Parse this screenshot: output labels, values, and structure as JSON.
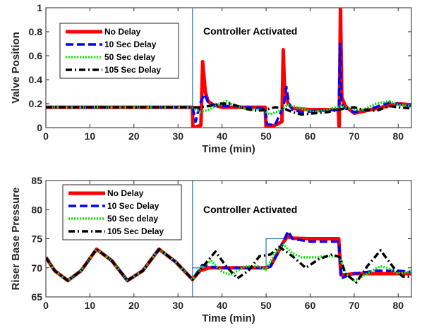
{
  "chart_data": [
    {
      "type": "line",
      "xlabel": "Time (min)",
      "ylabel": "Valve Position",
      "xlim": [
        0,
        83
      ],
      "ylim": [
        0,
        1
      ],
      "xticks": [
        0,
        10,
        20,
        30,
        40,
        50,
        60,
        70,
        80
      ],
      "yticks": [
        0,
        0.2,
        0.4,
        0.6,
        0.8,
        1
      ],
      "ytick_labels": [
        "0",
        "0.2",
        "0.4",
        "0.6",
        "0.8",
        "1"
      ],
      "annotation": "Controller Activated",
      "vline_x": 33.3,
      "legend_position": "top-left",
      "series": [
        {
          "name": "No Delay",
          "color": "#ff0000",
          "style": "solid",
          "x": [
            0,
            33.3,
            33.4,
            33.6,
            35.2,
            35.6,
            36.2,
            36.8,
            38,
            40,
            43,
            47,
            49.8,
            50,
            50.2,
            52,
            53.6,
            53.9,
            54.2,
            55,
            56,
            60,
            64,
            66.4,
            66.6,
            66.9,
            67.2,
            68,
            70,
            75,
            80,
            83
          ],
          "y": [
            0.17,
            0.17,
            0,
            0,
            0.02,
            0.55,
            0.3,
            0.22,
            0.19,
            0.17,
            0.17,
            0.17,
            0.17,
            0,
            0,
            0.02,
            0.05,
            0.65,
            0.3,
            0.2,
            0.16,
            0.15,
            0.15,
            0.15,
            0,
            1.0,
            0.25,
            0.18,
            0.12,
            0.16,
            0.2,
            0.19
          ]
        },
        {
          "name": "10 Sec Delay",
          "color": "#0000ff",
          "style": "dashed",
          "x": [
            0,
            33.3,
            34,
            35,
            36,
            37,
            39,
            42,
            46,
            49.8,
            50.2,
            52,
            54,
            54.6,
            55.2,
            56,
            58,
            62,
            66.5,
            66.8,
            67.1,
            68,
            70,
            74,
            78,
            83
          ],
          "y": [
            0.17,
            0.17,
            0.05,
            0.2,
            0.28,
            0.2,
            0.18,
            0.18,
            0.17,
            0.16,
            0.03,
            0.02,
            0.18,
            0.34,
            0.2,
            0.15,
            0.13,
            0.14,
            0.15,
            0.7,
            0.2,
            0.16,
            0.13,
            0.16,
            0.21,
            0.18
          ]
        },
        {
          "name": "50 Sec delay",
          "color": "#00ee00",
          "style": "dotted",
          "x": [
            0,
            33.3,
            35,
            37,
            39,
            41,
            43,
            46,
            49,
            51,
            53,
            55,
            58,
            61,
            64,
            67,
            69,
            72,
            75,
            78,
            80,
            83
          ],
          "y": [
            0.17,
            0.17,
            0.13,
            0.15,
            0.19,
            0.22,
            0.18,
            0.15,
            0.15,
            0.11,
            0.14,
            0.19,
            0.16,
            0.13,
            0.15,
            0.18,
            0.16,
            0.15,
            0.2,
            0.22,
            0.19,
            0.18
          ]
        },
        {
          "name": "105 Sec Delay",
          "color": "#000000",
          "style": "dashdot",
          "x": [
            0,
            33.3,
            35,
            37,
            39.5,
            42,
            45,
            48,
            50,
            52,
            54,
            56,
            58,
            61,
            64,
            66.5,
            68,
            70,
            72,
            75,
            78,
            80,
            83
          ],
          "y": [
            0.17,
            0.17,
            0.17,
            0.18,
            0.2,
            0.2,
            0.16,
            0.14,
            0.15,
            0.17,
            0.16,
            0.13,
            0.11,
            0.12,
            0.13,
            0.15,
            0.16,
            0.17,
            0.15,
            0.14,
            0.18,
            0.17,
            0.16
          ]
        }
      ]
    },
    {
      "type": "line",
      "xlabel": "Time (min)",
      "ylabel": "Riser Base Pressure",
      "xlim": [
        0,
        83
      ],
      "ylim": [
        65,
        85
      ],
      "xticks": [
        0,
        10,
        20,
        30,
        40,
        50,
        60,
        70,
        80
      ],
      "yticks": [
        65,
        70,
        75,
        80,
        85
      ],
      "ytick_labels": [
        "65",
        "70",
        "75",
        "80",
        "85"
      ],
      "annotation": "Controller Activated",
      "vline_x": 33.3,
      "legend_position": "top-left",
      "setpoint": {
        "color": "#1f77b4",
        "x": [
          33.3,
          50,
          50,
          66.7,
          66.7,
          83
        ],
        "y": [
          70,
          70,
          75,
          75,
          69,
          69
        ]
      },
      "series": [
        {
          "name": "No Delay",
          "color": "#ff0000",
          "style": "solid",
          "x": [
            0,
            2,
            5,
            8,
            11.5,
            15,
            18.5,
            22,
            25.7,
            29.5,
            33.3,
            35,
            37,
            40,
            45,
            50,
            51,
            54,
            55,
            56,
            60,
            66.5,
            67,
            68,
            70,
            75,
            80,
            83
          ],
          "y": [
            71.8,
            69.5,
            67.8,
            69.5,
            73.2,
            71.2,
            67.8,
            69.5,
            73.2,
            71.0,
            68.0,
            69.5,
            70,
            70,
            70,
            70,
            70.3,
            74.5,
            75.5,
            75.1,
            75,
            75,
            68.8,
            68.8,
            69,
            69,
            69,
            69
          ]
        },
        {
          "name": "10 Sec Delay",
          "color": "#0000ff",
          "style": "dashed",
          "x": [
            0,
            2,
            5,
            8,
            11.5,
            15,
            18.5,
            22,
            25.7,
            29.5,
            33.3,
            35.5,
            37,
            40,
            45,
            50,
            51,
            53,
            55,
            56,
            60,
            66.5,
            67.1,
            68,
            70,
            75,
            80,
            83
          ],
          "y": [
            71.8,
            69.5,
            67.8,
            69.5,
            73.2,
            71.2,
            67.8,
            69.5,
            73.2,
            71.0,
            68.0,
            70.5,
            70.2,
            70,
            70,
            70,
            70.2,
            73,
            76.3,
            75,
            74.5,
            74.5,
            68.2,
            68.5,
            69,
            69.5,
            69.5,
            69.3
          ]
        },
        {
          "name": "50 Sec delay",
          "color": "#00ee00",
          "style": "dotted",
          "x": [
            0,
            2,
            5,
            8,
            11.5,
            15,
            18.5,
            22,
            25.7,
            29.5,
            33.3,
            35.5,
            37.5,
            40,
            42,
            45,
            48,
            50,
            52,
            54,
            56,
            58,
            61,
            64,
            66.7,
            68,
            70,
            73,
            76,
            78,
            80,
            83
          ],
          "y": [
            71.8,
            69.5,
            67.8,
            69.5,
            73.2,
            71.2,
            67.8,
            69.5,
            73.2,
            71.0,
            68.0,
            70.2,
            71.2,
            69.3,
            68.8,
            70.2,
            70.3,
            69.7,
            72.5,
            74,
            72.5,
            71.8,
            71.8,
            72,
            72,
            69,
            67.8,
            69,
            70.3,
            69.8,
            69,
            69.4
          ]
        },
        {
          "name": "105 Sec Delay",
          "color": "#000000",
          "style": "dashdot",
          "x": [
            0,
            2,
            5,
            8,
            11.5,
            15,
            18.5,
            22,
            25.7,
            29.5,
            33.3,
            36,
            38.5,
            41,
            43.5,
            46,
            48.5,
            51,
            53,
            56,
            59,
            62,
            65,
            66.8,
            68,
            70.5,
            73,
            76,
            79,
            81,
            83
          ],
          "y": [
            71.8,
            69.5,
            67.8,
            69.5,
            73.2,
            71.2,
            67.8,
            69.5,
            73.2,
            71.0,
            68.0,
            70.5,
            72.8,
            70.2,
            68.2,
            69.5,
            72,
            72.3,
            73.6,
            72,
            70,
            71.5,
            72.3,
            71.8,
            69,
            67.5,
            70.3,
            73,
            70,
            68.5,
            68.5
          ]
        }
      ]
    }
  ]
}
